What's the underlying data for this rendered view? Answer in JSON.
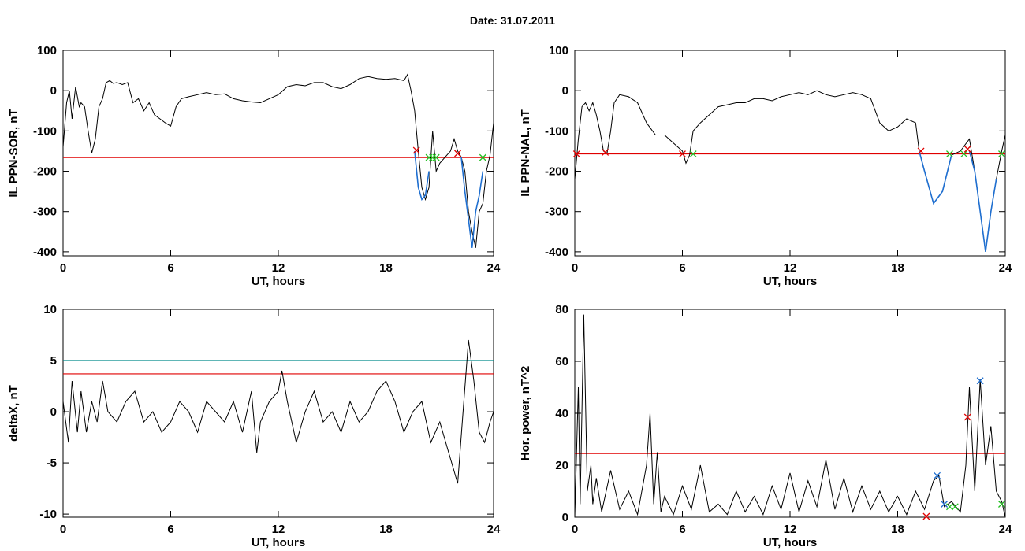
{
  "title": "Date:  31.07.2011",
  "colors": {
    "axis": "#000000",
    "threshold": "#e00000",
    "threshold2": "#008b8b",
    "segment": "#1f6fd0",
    "mark_red": "#e00000",
    "mark_green": "#22c022",
    "mark_blue": "#1f6fd0"
  },
  "chart_data": [
    {
      "id": "top-left",
      "type": "line",
      "xlabel": "UT, hours",
      "ylabel": "IL PPN-SOR, nT",
      "xlim": [
        0,
        24
      ],
      "ylim": [
        -410,
        100
      ],
      "xticks": [
        0,
        6,
        12,
        18,
        24
      ],
      "yticks": [
        100,
        0,
        -100,
        -200,
        -300,
        -400
      ],
      "grid": false,
      "threshold": [
        {
          "y": -166,
          "color": "red"
        }
      ],
      "series": [
        {
          "x": [
            0,
            0.2,
            0.35,
            0.5,
            0.7,
            0.9,
            1.0,
            1.2,
            1.4,
            1.6,
            1.8,
            2.0,
            2.2,
            2.4,
            2.6,
            2.8,
            3.0,
            3.3,
            3.6,
            3.9,
            4.2,
            4.5,
            4.8,
            5.1,
            5.4,
            5.7,
            6.0,
            6.3,
            6.6,
            7.0,
            7.5,
            8,
            8.5,
            9,
            9.5,
            10,
            10.5,
            11,
            11.5,
            12,
            12.5,
            13,
            13.5,
            14,
            14.5,
            15,
            15.5,
            16,
            16.5,
            17,
            17.5,
            18,
            18.5,
            19,
            19.2,
            19.4,
            19.6,
            19.8,
            20.0,
            20.2,
            20.4,
            20.6,
            20.8,
            21.0,
            21.2,
            21.4,
            21.6,
            21.8,
            22.0,
            22.2,
            22.4,
            22.6,
            22.8,
            23.0,
            23.2,
            23.4,
            23.6,
            23.8,
            24.0
          ],
          "y": [
            -140,
            -30,
            0,
            -70,
            10,
            -40,
            -30,
            -40,
            -100,
            -155,
            -120,
            -40,
            -20,
            20,
            25,
            18,
            20,
            15,
            20,
            -30,
            -20,
            -50,
            -30,
            -60,
            -70,
            -80,
            -88,
            -40,
            -20,
            -15,
            -10,
            -5,
            -10,
            -8,
            -20,
            -25,
            -28,
            -30,
            -20,
            -10,
            10,
            15,
            12,
            20,
            20,
            10,
            5,
            15,
            30,
            35,
            30,
            28,
            30,
            25,
            40,
            0,
            -50,
            -150,
            -240,
            -270,
            -240,
            -100,
            -200,
            -180,
            -170,
            -160,
            -150,
            -120,
            -150,
            -165,
            -200,
            -300,
            -350,
            -390,
            -300,
            -280,
            -200,
            -160,
            -80
          ]
        },
        {
          "name": "segment",
          "color": "blue",
          "x": [
            19.6,
            19.8,
            20.0,
            20.2,
            20.4
          ],
          "y": [
            -150,
            -240,
            -270,
            -260,
            -200
          ]
        },
        {
          "name": "segment2",
          "color": "blue",
          "x": [
            22.2,
            22.4,
            22.6,
            22.8,
            23.0,
            23.2,
            23.4
          ],
          "y": [
            -165,
            -250,
            -320,
            -390,
            -300,
            -260,
            -200
          ]
        }
      ],
      "markers": [
        {
          "x": 19.7,
          "y": -148,
          "color": "red"
        },
        {
          "x": 20.4,
          "y": -166,
          "color": "green"
        },
        {
          "x": 20.6,
          "y": -166,
          "color": "green"
        },
        {
          "x": 20.8,
          "y": -166,
          "color": "green"
        },
        {
          "x": 22.0,
          "y": -156,
          "color": "red"
        },
        {
          "x": 23.4,
          "y": -166,
          "color": "green"
        }
      ]
    },
    {
      "id": "top-right",
      "type": "line",
      "xlabel": "UT, hours",
      "ylabel": "IL PPN-NAL, nT",
      "xlim": [
        0,
        24
      ],
      "ylim": [
        -410,
        100
      ],
      "xticks": [
        0,
        6,
        12,
        18,
        24
      ],
      "yticks": [
        100,
        0,
        -100,
        -200,
        -300,
        -400
      ],
      "grid": false,
      "threshold": [
        {
          "y": -157,
          "color": "red"
        }
      ],
      "series": [
        {
          "x": [
            0,
            0.2,
            0.4,
            0.6,
            0.8,
            1.0,
            1.2,
            1.4,
            1.6,
            1.8,
            2.0,
            2.2,
            2.5,
            3.0,
            3.5,
            4.0,
            4.5,
            5.0,
            5.5,
            6.0,
            6.2,
            6.4,
            6.6,
            7.0,
            7.5,
            8,
            8.5,
            9,
            9.5,
            10,
            10.5,
            11,
            11.5,
            12,
            12.5,
            13,
            13.5,
            14,
            14.5,
            15,
            15.5,
            16,
            16.5,
            17,
            17.5,
            18,
            18.5,
            19,
            19.2,
            19.5,
            20,
            20.5,
            21,
            21.5,
            22,
            22.3,
            22.6,
            22.9,
            23.2,
            23.5,
            23.8,
            24.0
          ],
          "y": [
            -220,
            -120,
            -40,
            -30,
            -50,
            -30,
            -60,
            -100,
            -150,
            -155,
            -100,
            -30,
            -10,
            -15,
            -30,
            -80,
            -110,
            -110,
            -130,
            -150,
            -180,
            -160,
            -100,
            -80,
            -60,
            -40,
            -35,
            -30,
            -30,
            -20,
            -20,
            -25,
            -15,
            -10,
            -5,
            -10,
            0,
            -10,
            -15,
            -10,
            -5,
            -10,
            -20,
            -80,
            -100,
            -90,
            -70,
            -80,
            -150,
            -200,
            -280,
            -250,
            -160,
            -150,
            -120,
            -200,
            -300,
            -400,
            -300,
            -220,
            -150,
            -110
          ]
        },
        {
          "name": "segment",
          "color": "blue",
          "x": [
            19.2,
            19.5,
            20.0,
            20.5,
            21.0
          ],
          "y": [
            -150,
            -200,
            -280,
            -250,
            -160
          ]
        },
        {
          "name": "segment2",
          "color": "blue",
          "x": [
            22.0,
            22.3,
            22.6,
            22.9,
            23.2,
            23.5
          ],
          "y": [
            -150,
            -200,
            -300,
            -400,
            -300,
            -220
          ]
        }
      ],
      "markers": [
        {
          "x": 0.1,
          "y": -157,
          "color": "red"
        },
        {
          "x": 1.7,
          "y": -153,
          "color": "red"
        },
        {
          "x": 6.0,
          "y": -157,
          "color": "red"
        },
        {
          "x": 6.6,
          "y": -157,
          "color": "green"
        },
        {
          "x": 19.3,
          "y": -150,
          "color": "red"
        },
        {
          "x": 20.9,
          "y": -157,
          "color": "green"
        },
        {
          "x": 21.7,
          "y": -157,
          "color": "green"
        },
        {
          "x": 21.9,
          "y": -145,
          "color": "red"
        },
        {
          "x": 23.8,
          "y": -157,
          "color": "green"
        }
      ]
    },
    {
      "id": "bottom-left",
      "type": "line",
      "xlabel": "UT, hours",
      "ylabel": "deltaX, nT",
      "xlim": [
        0,
        24
      ],
      "ylim": [
        -10.3,
        10
      ],
      "xticks": [
        0,
        6,
        12,
        18,
        24
      ],
      "yticks": [
        10,
        5,
        0,
        -5,
        -10
      ],
      "grid": false,
      "threshold": [
        {
          "y": 5,
          "color": "teal"
        },
        {
          "y": 3.7,
          "color": "red"
        }
      ],
      "series": [
        {
          "x": [
            0,
            0.3,
            0.5,
            0.8,
            1.0,
            1.3,
            1.6,
            1.9,
            2.2,
            2.5,
            3,
            3.5,
            4,
            4.5,
            5,
            5.5,
            6,
            6.5,
            7,
            7.5,
            8,
            8.5,
            9,
            9.5,
            10,
            10.5,
            10.8,
            11,
            11.5,
            12,
            12.2,
            12.5,
            13,
            13.5,
            14,
            14.5,
            15,
            15.5,
            16,
            16.5,
            17,
            17.5,
            18,
            18.5,
            19,
            19.5,
            20,
            20.5,
            21,
            21.5,
            22,
            22.3,
            22.6,
            22.9,
            23.2,
            23.5,
            23.8,
            24
          ],
          "y": [
            1,
            -3,
            3,
            -2,
            2,
            -2,
            1,
            -1,
            3,
            0,
            -1,
            1,
            2,
            -1,
            0,
            -2,
            -1,
            1,
            0,
            -2,
            1,
            0,
            -1,
            1,
            -2,
            2,
            -4,
            -1,
            1,
            2,
            4,
            1,
            -3,
            0,
            2,
            -1,
            0,
            -2,
            1,
            -1,
            0,
            2,
            3,
            1,
            -2,
            0,
            1,
            -3,
            -1,
            -4,
            -7,
            0,
            7,
            3,
            -2,
            -3,
            -1,
            0
          ]
        }
      ],
      "markers": []
    },
    {
      "id": "bottom-right",
      "type": "line",
      "xlabel": "UT, hours",
      "ylabel": "Hor. power, nT^2",
      "xlim": [
        0,
        24
      ],
      "ylim": [
        0,
        80
      ],
      "xticks": [
        0,
        6,
        12,
        18,
        24
      ],
      "yticks": [
        80,
        60,
        40,
        20,
        0
      ],
      "grid": false,
      "threshold": [
        {
          "y": 24.5,
          "color": "red"
        }
      ],
      "series": [
        {
          "x": [
            0,
            0.2,
            0.3,
            0.5,
            0.7,
            0.9,
            1.0,
            1.2,
            1.5,
            2,
            2.5,
            3,
            3.5,
            4,
            4.2,
            4.4,
            4.6,
            4.8,
            5,
            5.5,
            6,
            6.5,
            7,
            7.5,
            8,
            8.5,
            9,
            9.5,
            10,
            10.5,
            11,
            11.5,
            12,
            12.5,
            13,
            13.5,
            14,
            14.5,
            15,
            15.5,
            16,
            16.5,
            17,
            17.5,
            18,
            18.5,
            19,
            19.5,
            20,
            20.3,
            20.6,
            21,
            21.5,
            21.8,
            22,
            22.3,
            22.6,
            22.9,
            23.2,
            23.5,
            23.8,
            24
          ],
          "y": [
            0,
            50,
            5,
            78,
            10,
            20,
            5,
            15,
            2,
            18,
            3,
            10,
            1,
            20,
            40,
            5,
            25,
            2,
            8,
            1,
            12,
            3,
            20,
            2,
            5,
            1,
            10,
            2,
            8,
            1,
            12,
            3,
            17,
            2,
            14,
            4,
            22,
            3,
            15,
            2,
            12,
            3,
            10,
            2,
            8,
            1,
            10,
            3,
            14,
            16,
            4,
            6,
            2,
            20,
            50,
            10,
            53,
            20,
            35,
            10,
            6,
            0
          ]
        }
      ],
      "markers": [
        {
          "x": 19.6,
          "y": 0.3,
          "color": "red"
        },
        {
          "x": 20.2,
          "y": 16,
          "color": "blue"
        },
        {
          "x": 20.6,
          "y": 5,
          "color": "blue"
        },
        {
          "x": 20.9,
          "y": 4,
          "color": "green"
        },
        {
          "x": 21.2,
          "y": 4,
          "color": "green"
        },
        {
          "x": 21.9,
          "y": 38.5,
          "color": "red"
        },
        {
          "x": 22.6,
          "y": 52.5,
          "color": "blue"
        },
        {
          "x": 23.8,
          "y": 5,
          "color": "green"
        }
      ]
    }
  ]
}
